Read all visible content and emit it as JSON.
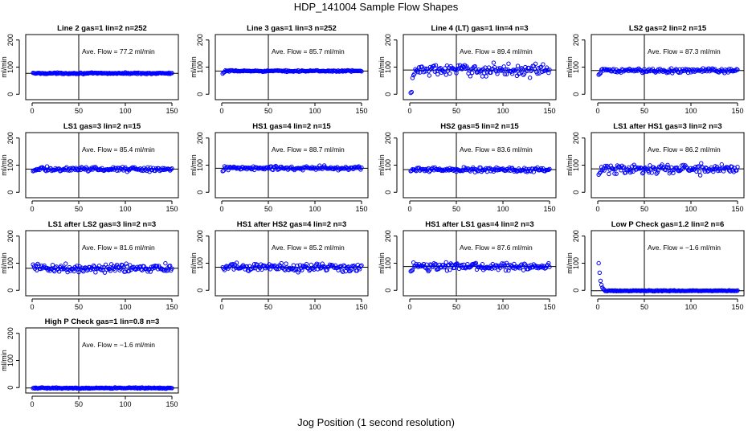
{
  "title": "HDP_141004  Sample Flow Shapes",
  "xlabel": "Jog Position (1 second resolution)",
  "colors": {
    "points": "#0000ff",
    "axes": "#000000",
    "background": "#ffffff"
  },
  "chart_data": [
    {
      "type": "scatter",
      "title": "Line 2 gas=1 lin=2 n=252",
      "annotation": "Ave. Flow =  77.2  ml/min",
      "ylabel": "ml/min",
      "xlim": [
        0,
        150
      ],
      "ylim": [
        -20,
        220
      ],
      "xticks": [
        0,
        50,
        100,
        150
      ],
      "yticks": [
        0,
        100,
        200
      ],
      "vline": 50,
      "hline": 77.2,
      "series": {
        "n": 150,
        "mean": 77.2,
        "noise": 1.5
      }
    },
    {
      "type": "scatter",
      "title": "Line 3 gas=1 lin=3 n=252",
      "annotation": "Ave. Flow =  85.7  ml/min",
      "ylabel": "ml/min",
      "xlim": [
        0,
        150
      ],
      "ylim": [
        -20,
        220
      ],
      "xticks": [
        0,
        50,
        100,
        150
      ],
      "yticks": [
        0,
        100,
        200
      ],
      "vline": 50,
      "hline": 85.7,
      "series": {
        "n": 150,
        "mean": 85.7,
        "noise": 1.5,
        "start": [
          76,
          80,
          82
        ]
      }
    },
    {
      "type": "scatter",
      "title": "Line 4 (LT) gas=1 lin=4 n=3",
      "annotation": "Ave. Flow =  89.4  ml/min",
      "ylabel": "ml/min",
      "xlim": [
        0,
        150
      ],
      "ylim": [
        -20,
        220
      ],
      "xticks": [
        0,
        50,
        100,
        150
      ],
      "yticks": [
        0,
        100,
        200
      ],
      "vline": 50,
      "hline": 89.4,
      "series": {
        "n": 150,
        "mean": 89.4,
        "noise": 13,
        "start": [
          5,
          8,
          60,
          70,
          75
        ]
      }
    },
    {
      "type": "scatter",
      "title": "LS2 gas=2 lin=2 n=15",
      "annotation": "Ave. Flow =  87.3  ml/min",
      "ylabel": "ml/min",
      "xlim": [
        0,
        150
      ],
      "ylim": [
        -20,
        220
      ],
      "xticks": [
        0,
        50,
        100,
        150
      ],
      "yticks": [
        0,
        100,
        200
      ],
      "vline": 50,
      "hline": 87.3,
      "series": {
        "n": 150,
        "mean": 87.3,
        "noise": 5,
        "start": [
          72,
          75,
          78
        ]
      }
    },
    {
      "type": "scatter",
      "title": "LS1 gas=3 lin=2 n=15",
      "annotation": "Ave. Flow =  85.4  ml/min",
      "ylabel": "ml/min",
      "xlim": [
        0,
        150
      ],
      "ylim": [
        -20,
        220
      ],
      "xticks": [
        0,
        50,
        100,
        150
      ],
      "yticks": [
        0,
        100,
        200
      ],
      "vline": 50,
      "hline": 85.4,
      "series": {
        "n": 150,
        "mean": 85.4,
        "noise": 5,
        "start": [
          78,
          80
        ]
      }
    },
    {
      "type": "scatter",
      "title": "HS1 gas=4 lin=2 n=15",
      "annotation": "Ave. Flow =  88.7  ml/min",
      "ylabel": "ml/min",
      "xlim": [
        0,
        150
      ],
      "ylim": [
        -20,
        220
      ],
      "xticks": [
        0,
        50,
        100,
        150
      ],
      "yticks": [
        0,
        100,
        200
      ],
      "vline": 50,
      "hline": 88.7,
      "series": {
        "n": 150,
        "mean": 88.7,
        "noise": 5,
        "start": [
          78,
          80
        ]
      }
    },
    {
      "type": "scatter",
      "title": "HS2 gas=5 lin=2 n=15",
      "annotation": "Ave. Flow =  83.6  ml/min",
      "ylabel": "ml/min",
      "xlim": [
        0,
        150
      ],
      "ylim": [
        -20,
        220
      ],
      "xticks": [
        0,
        50,
        100,
        150
      ],
      "yticks": [
        0,
        100,
        200
      ],
      "vline": 50,
      "hline": 83.6,
      "series": {
        "n": 150,
        "mean": 83.6,
        "noise": 5,
        "start": [
          78,
          80
        ]
      }
    },
    {
      "type": "scatter",
      "title": "LS1 after HS1 gas=3 lin=2 n=3",
      "annotation": "Ave. Flow =  86.2  ml/min",
      "ylabel": "ml/min",
      "xlim": [
        0,
        150
      ],
      "ylim": [
        -20,
        220
      ],
      "xticks": [
        0,
        50,
        100,
        150
      ],
      "yticks": [
        0,
        100,
        200
      ],
      "vline": 50,
      "hline": 86.2,
      "series": {
        "n": 150,
        "mean": 86.2,
        "noise": 11,
        "start": [
          65,
          70,
          75
        ]
      }
    },
    {
      "type": "scatter",
      "title": "LS1 after LS2 gas=3 lin=2 n=3",
      "annotation": "Ave. Flow =  81.6  ml/min",
      "ylabel": "ml/min",
      "xlim": [
        0,
        150
      ],
      "ylim": [
        -20,
        220
      ],
      "xticks": [
        0,
        50,
        100,
        150
      ],
      "yticks": [
        0,
        100,
        200
      ],
      "vline": 50,
      "hline": 81.6,
      "series": {
        "n": 150,
        "mean": 81.6,
        "noise": 9,
        "start": [
          95,
          88,
          80
        ]
      }
    },
    {
      "type": "scatter",
      "title": "HS1 after HS2 gas=4 lin=2 n=3",
      "annotation": "Ave. Flow =  85.2  ml/min",
      "ylabel": "ml/min",
      "xlim": [
        0,
        150
      ],
      "ylim": [
        -20,
        220
      ],
      "xticks": [
        0,
        50,
        100,
        150
      ],
      "yticks": [
        0,
        100,
        200
      ],
      "vline": 50,
      "hline": 85.2,
      "series": {
        "n": 150,
        "mean": 85.2,
        "noise": 10,
        "start": [
          85,
          80,
          75
        ]
      }
    },
    {
      "type": "scatter",
      "title": "HS1 after LS1 gas=4 lin=2 n=3",
      "annotation": "Ave. Flow =  87.6  ml/min",
      "ylabel": "ml/min",
      "xlim": [
        0,
        150
      ],
      "ylim": [
        -20,
        220
      ],
      "xticks": [
        0,
        50,
        100,
        150
      ],
      "yticks": [
        0,
        100,
        200
      ],
      "vline": 50,
      "hline": 87.6,
      "series": {
        "n": 150,
        "mean": 87.6,
        "noise": 8,
        "start": [
          70,
          72,
          75
        ]
      }
    },
    {
      "type": "scatter",
      "title": "Low P Check gas=1.2 lin=2 n=6",
      "annotation": "Ave. Flow =  −1.6  ml/min",
      "ylabel": "ml/min",
      "xlim": [
        0,
        150
      ],
      "ylim": [
        -20,
        220
      ],
      "xticks": [
        0,
        50,
        100,
        150
      ],
      "yticks": [
        0,
        100,
        200
      ],
      "vline": 50,
      "hline": -1.6,
      "series": {
        "n": 150,
        "mean": -1.6,
        "noise": 1,
        "start": [
          100,
          65,
          35,
          20,
          10,
          5,
          2
        ]
      }
    },
    {
      "type": "scatter",
      "title": "High P Check gas=1 lin=0.8 n=3",
      "annotation": "Ave. Flow =  −1.6  ml/min",
      "ylabel": "ml/min",
      "xlim": [
        0,
        150
      ],
      "ylim": [
        -20,
        220
      ],
      "xticks": [
        0,
        50,
        100,
        150
      ],
      "yticks": [
        0,
        100,
        200
      ],
      "vline": 50,
      "hline": -1.6,
      "series": {
        "n": 150,
        "mean": -1.6,
        "noise": 1.2
      }
    }
  ]
}
